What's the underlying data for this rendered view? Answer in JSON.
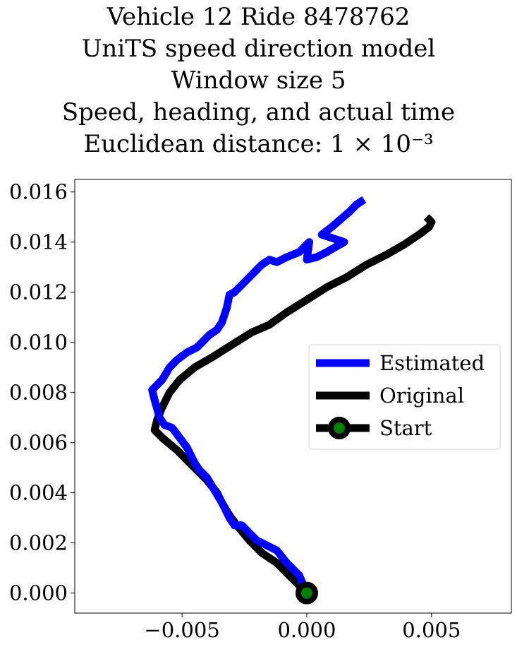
{
  "title_lines": [
    "Vehicle 12 Ride 8478762",
    "UniTS speed direction model",
    "Window size 5",
    "Speed, heading, and actual time",
    "Euclidean distance: 1 × 10⁻³"
  ],
  "chart_data": {
    "type": "line",
    "title": "Vehicle 12 Ride 8478762 / UniTS speed direction model / Window size 5 / Speed, heading, and actual time / Euclidean distance: 1 × 10⁻³",
    "xlabel": "",
    "ylabel": "",
    "xlim": [
      -0.0093,
      0.0082
    ],
    "ylim": [
      -0.0008,
      0.0165
    ],
    "x_ticks": [
      -0.005,
      0.0,
      0.005
    ],
    "x_tick_labels": [
      "−0.005",
      "0.000",
      "0.005"
    ],
    "y_ticks": [
      0.0,
      0.002,
      0.004,
      0.006,
      0.008,
      0.01,
      0.012,
      0.014,
      0.016
    ],
    "y_tick_labels": [
      "0.000",
      "0.002",
      "0.004",
      "0.006",
      "0.008",
      "0.010",
      "0.012",
      "0.014",
      "0.016"
    ],
    "grid": false,
    "legend_position": "center-right",
    "series": [
      {
        "name": "Estimated",
        "color": "#0000ff",
        "points": [
          [
            0.0,
            0.0
          ],
          [
            -0.0003,
            0.0007
          ],
          [
            -0.0008,
            0.0012
          ],
          [
            -0.0012,
            0.0017
          ],
          [
            -0.0016,
            0.0019
          ],
          [
            -0.002,
            0.0021
          ],
          [
            -0.0022,
            0.0023
          ],
          [
            -0.0026,
            0.0027
          ],
          [
            -0.0029,
            0.0027
          ],
          [
            -0.0031,
            0.003
          ],
          [
            -0.0034,
            0.0036
          ],
          [
            -0.0037,
            0.0041
          ],
          [
            -0.004,
            0.0046
          ],
          [
            -0.0043,
            0.0049
          ],
          [
            -0.0045,
            0.0052
          ],
          [
            -0.0048,
            0.0058
          ],
          [
            -0.0051,
            0.0062
          ],
          [
            -0.0054,
            0.0066
          ],
          [
            -0.0057,
            0.0067
          ],
          [
            -0.0059,
            0.007
          ],
          [
            -0.0061,
            0.0077
          ],
          [
            -0.0062,
            0.0081
          ],
          [
            -0.0058,
            0.0085
          ],
          [
            -0.0055,
            0.009
          ],
          [
            -0.0052,
            0.0093
          ],
          [
            -0.0048,
            0.0096
          ],
          [
            -0.0044,
            0.0098
          ],
          [
            -0.0042,
            0.01
          ],
          [
            -0.0039,
            0.0103
          ],
          [
            -0.0036,
            0.0105
          ],
          [
            -0.0034,
            0.0108
          ],
          [
            -0.0032,
            0.0114
          ],
          [
            -0.0031,
            0.0119
          ],
          [
            -0.0029,
            0.012
          ],
          [
            -0.0027,
            0.0122
          ],
          [
            -0.0024,
            0.0125
          ],
          [
            -0.0021,
            0.0128
          ],
          [
            -0.0018,
            0.0131
          ],
          [
            -0.0015,
            0.0133
          ],
          [
            -0.0012,
            0.0132
          ],
          [
            -0.0008,
            0.0134
          ],
          [
            -0.0003,
            0.0136
          ],
          [
            0.0001,
            0.014
          ],
          [
            0.0,
            0.0133
          ],
          [
            0.0004,
            0.0134
          ],
          [
            0.0008,
            0.0136
          ],
          [
            0.0015,
            0.014
          ],
          [
            0.0006,
            0.0143
          ],
          [
            0.001,
            0.0146
          ],
          [
            0.0017,
            0.0152
          ],
          [
            0.002,
            0.0155
          ],
          [
            0.0023,
            0.0157
          ]
        ]
      },
      {
        "name": "Original",
        "color": "#000000",
        "points": [
          [
            0.0,
            0.0
          ],
          [
            -0.0006,
            0.0006
          ],
          [
            -0.0012,
            0.0012
          ],
          [
            -0.0018,
            0.0016
          ],
          [
            -0.0023,
            0.0021
          ],
          [
            -0.0028,
            0.0027
          ],
          [
            -0.0031,
            0.0031
          ],
          [
            -0.0034,
            0.0036
          ],
          [
            -0.0036,
            0.004
          ],
          [
            -0.004,
            0.0045
          ],
          [
            -0.0046,
            0.0051
          ],
          [
            -0.0052,
            0.0057
          ],
          [
            -0.0058,
            0.0062
          ],
          [
            -0.0061,
            0.0065
          ],
          [
            -0.006,
            0.0069
          ],
          [
            -0.0058,
            0.0074
          ],
          [
            -0.0055,
            0.008
          ],
          [
            -0.0051,
            0.0085
          ],
          [
            -0.0045,
            0.009
          ],
          [
            -0.0038,
            0.0094
          ],
          [
            -0.003,
            0.0099
          ],
          [
            -0.0022,
            0.0104
          ],
          [
            -0.0015,
            0.0107
          ],
          [
            -0.0008,
            0.0112
          ],
          [
            0.0,
            0.0117
          ],
          [
            0.0008,
            0.0122
          ],
          [
            0.0016,
            0.0126
          ],
          [
            0.0024,
            0.0131
          ],
          [
            0.0032,
            0.0135
          ],
          [
            0.0039,
            0.0139
          ],
          [
            0.0045,
            0.0143
          ],
          [
            0.0049,
            0.0146
          ],
          [
            0.005,
            0.0148
          ],
          [
            0.0048,
            0.015
          ]
        ]
      },
      {
        "name": "Start",
        "color": "#000000",
        "marker_color": "#008000",
        "points": [
          [
            0.0,
            0.0
          ]
        ]
      }
    ]
  }
}
